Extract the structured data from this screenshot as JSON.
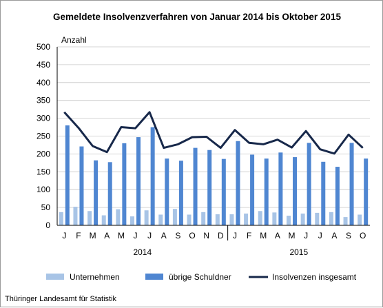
{
  "chart_data": {
    "type": "bar",
    "title": "Gemeldete Insolvenzverfahren von Januar 2014 bis Oktober 2015",
    "ylabel": "Anzahl",
    "xlabel": "",
    "ylim": [
      0,
      500
    ],
    "yticks": [
      "0",
      "50",
      "100",
      "150",
      "200",
      "250",
      "300",
      "350",
      "400",
      "450",
      "500"
    ],
    "categories": [
      "J",
      "F",
      "M",
      "A",
      "M",
      "J",
      "J",
      "A",
      "S",
      "O",
      "N",
      "D",
      "J",
      "F",
      "M",
      "A",
      "M",
      "J",
      "J",
      "A",
      "S",
      "O"
    ],
    "year_groups": [
      {
        "label": "2014",
        "count": 12
      },
      {
        "label": "2015",
        "count": 10
      }
    ],
    "grid": true,
    "legend_position": "bottom",
    "series": [
      {
        "name": "Unternehmen",
        "kind": "bar",
        "color": "#a8c4e6",
        "values": [
          37,
          52,
          40,
          28,
          45,
          25,
          42,
          30,
          46,
          30,
          37,
          31,
          31,
          33,
          40,
          36,
          27,
          33,
          35,
          37,
          23,
          30
        ]
      },
      {
        "name": "übrige Schuldner",
        "kind": "bar",
        "color": "#4f86d1",
        "values": [
          280,
          221,
          182,
          177,
          230,
          247,
          275,
          187,
          181,
          217,
          211,
          186,
          236,
          198,
          187,
          204,
          191,
          231,
          178,
          164,
          231,
          187
        ]
      },
      {
        "name": "Insolvenzen insgesamt",
        "kind": "line",
        "color": "#17284a",
        "values": [
          317,
          273,
          222,
          205,
          275,
          272,
          317,
          217,
          227,
          247,
          248,
          217,
          267,
          231,
          227,
          240,
          218,
          264,
          213,
          201,
          254,
          217
        ]
      }
    ]
  },
  "footer": {
    "source": "Thüringer Landesamt für Statistik"
  }
}
